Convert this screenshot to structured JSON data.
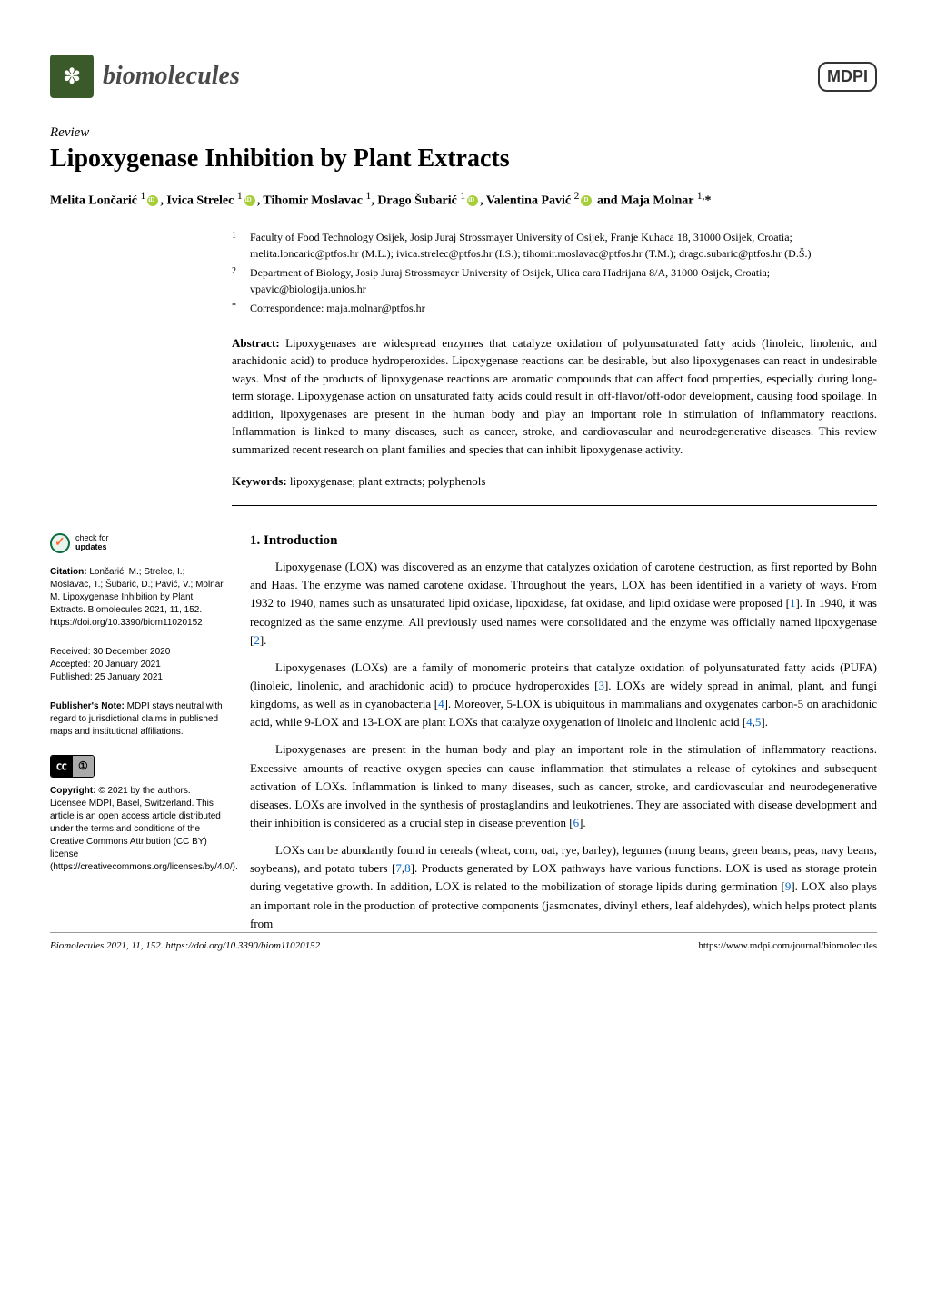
{
  "journal": {
    "name": "biomolecules",
    "publisher": "MDPI"
  },
  "article": {
    "type": "Review",
    "title": "Lipoxygenase Inhibition by Plant Extracts"
  },
  "authors_line": "Melita Lončarić ¹⊙, Ivica Strelec ¹⊙, Tihomir Moslavac ¹, Drago Šubarić ¹⊙, Valentina Pavić ²⊙ and Maja Molnar ¹,*",
  "affiliations": [
    {
      "num": "1",
      "text": "Faculty of Food Technology Osijek, Josip Juraj Strossmayer University of Osijek, Franje Kuhaca 18, 31000 Osijek, Croatia; melita.loncaric@ptfos.hr (M.L.); ivica.strelec@ptfos.hr (I.S.); tihomir.moslavac@ptfos.hr (T.M.); drago.subaric@ptfos.hr (D.Š.)"
    },
    {
      "num": "2",
      "text": "Department of Biology, Josip Juraj Strossmayer University of Osijek, Ulica cara Hadrijana 8/A, 31000 Osijek, Croatia; vpavic@biologija.unios.hr"
    },
    {
      "num": "*",
      "text": "Correspondence: maja.molnar@ptfos.hr"
    }
  ],
  "abstract": {
    "label": "Abstract:",
    "text": " Lipoxygenases are widespread enzymes that catalyze oxidation of polyunsaturated fatty acids (linoleic, linolenic, and arachidonic acid) to produce hydroperoxides. Lipoxygenase reactions can be desirable, but also lipoxygenases can react in undesirable ways. Most of the products of lipoxygenase reactions are aromatic compounds that can affect food properties, especially during long-term storage. Lipoxygenase action on unsaturated fatty acids could result in off-flavor/off-odor development, causing food spoilage. In addition, lipoxygenases are present in the human body and play an important role in stimulation of inflammatory reactions. Inflammation is linked to many diseases, such as cancer, stroke, and cardiovascular and neurodegenerative diseases. This review summarized recent research on plant families and species that can inhibit lipoxygenase activity."
  },
  "keywords": {
    "label": "Keywords:",
    "text": " lipoxygenase; plant extracts; polyphenols"
  },
  "section": {
    "heading": "1. Introduction",
    "paragraphs": [
      "Lipoxygenase (LOX) was discovered as an enzyme that catalyzes oxidation of carotene destruction, as first reported by Bohn and Haas. The enzyme was named carotene oxidase. Throughout the years, LOX has been identified in a variety of ways. From 1932 to 1940, names such as unsaturated lipid oxidase, lipoxidase, fat oxidase, and lipid oxidase were proposed [1]. In 1940, it was recognized as the same enzyme. All previously used names were consolidated and the enzyme was officially named lipoxygenase [2].",
      "Lipoxygenases (LOXs) are a family of monomeric proteins that catalyze oxidation of polyunsaturated fatty acids (PUFA) (linoleic, linolenic, and arachidonic acid) to produce hydroperoxides [3]. LOXs are widely spread in animal, plant, and fungi kingdoms, as well as in cyanobacteria [4]. Moreover, 5-LOX is ubiquitous in mammalians and oxygenates carbon-5 on arachidonic acid, while 9-LOX and 13-LOX are plant LOXs that catalyze oxygenation of linoleic and linolenic acid [4,5].",
      "Lipoxygenases are present in the human body and play an important role in the stimulation of inflammatory reactions. Excessive amounts of reactive oxygen species can cause inflammation that stimulates a release of cytokines and subsequent activation of LOXs. Inflammation is linked to many diseases, such as cancer, stroke, and cardiovascular and neurodegenerative diseases. LOXs are involved in the synthesis of prostaglandins and leukotrienes. They are associated with disease development and their inhibition is considered as a crucial step in disease prevention [6].",
      "LOXs can be abundantly found in cereals (wheat, corn, oat, rye, barley), legumes (mung beans, green beans, peas, navy beans, soybeans), and potato tubers [7,8]. Products generated by LOX pathways have various functions. LOX is used as storage protein during vegetative growth. In addition, LOX is related to the mobilization of storage lipids during germination [9]. LOX also plays an important role in the production of protective components (jasmonates, divinyl ethers, leaf aldehydes), which helps protect plants from"
    ]
  },
  "sidebar": {
    "check_updates": "check for updates",
    "citation": {
      "label": "Citation:",
      "text": " Lončarić, M.; Strelec, I.; Moslavac, T.; Šubarić, D.; Pavić, V.; Molnar, M. Lipoxygenase Inhibition by Plant Extracts. Biomolecules 2021, 11, 152. https://doi.org/10.3390/biom11020152"
    },
    "received": "Received: 30 December 2020",
    "accepted": "Accepted: 20 January 2021",
    "published": "Published: 25 January 2021",
    "publisher_note": {
      "label": "Publisher's Note:",
      "text": " MDPI stays neutral with regard to jurisdictional claims in published maps and institutional affiliations."
    },
    "copyright": {
      "label": "Copyright:",
      "text": " © 2021 by the authors. Licensee MDPI, Basel, Switzerland. This article is an open access article distributed under the terms and conditions of the Creative Commons Attribution (CC BY) license (https://creativecommons.org/licenses/by/4.0/)."
    }
  },
  "footer": {
    "left": "Biomolecules 2021, 11, 152. https://doi.org/10.3390/biom11020152",
    "right": "https://www.mdpi.com/journal/biomolecules"
  },
  "colors": {
    "ref_link": "#0066cc",
    "journal_badge": "#3a5a2a",
    "text": "#000000",
    "background": "#ffffff"
  }
}
